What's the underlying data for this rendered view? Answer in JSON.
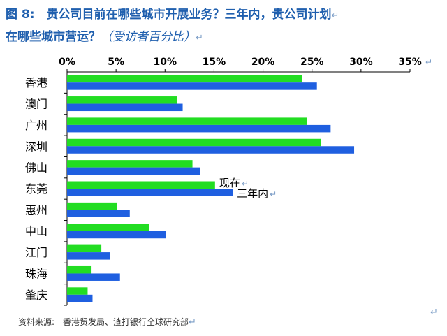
{
  "title": {
    "line1": "图 8:　贵公司目前在哪些城市开展业务？三年内，贵公司计划",
    "line2": "在哪些城市营运？",
    "line2_italic": "（受访者百分比）"
  },
  "return_mark": "↵",
  "source": "资料来源:　香港贸发局、渣打银行全球研究部",
  "colors": {
    "current": "#22dd22",
    "plan": "#1f5fe0",
    "title": "#1f5fae"
  },
  "chart_data": {
    "type": "bar",
    "orientation": "horizontal",
    "categories": [
      "香港",
      "澳门",
      "广州",
      "深圳",
      "佛山",
      "东莞",
      "惠州",
      "中山",
      "江门",
      "珠海",
      "肇庆"
    ],
    "series": [
      {
        "name": "现在",
        "values": [
          24.0,
          11.2,
          24.5,
          25.9,
          12.8,
          15.1,
          5.1,
          8.4,
          3.5,
          2.5,
          2.1
        ]
      },
      {
        "name": "三年内",
        "values": [
          25.5,
          11.8,
          26.9,
          29.3,
          13.6,
          16.9,
          6.4,
          10.1,
          4.4,
          5.4,
          2.6
        ]
      }
    ],
    "xlim": [
      0,
      35
    ],
    "x_ticks": [
      0,
      5,
      10,
      15,
      20,
      25,
      30,
      35
    ],
    "x_tick_labels": [
      "0%",
      "5%",
      "10%",
      "15%",
      "20%",
      "25%",
      "30%",
      "35%"
    ],
    "annotations": [
      {
        "text": "现在",
        "series": 0,
        "category": "东莞"
      },
      {
        "text": "三年内",
        "series": 1,
        "category": "东莞"
      }
    ],
    "axis_position": "top",
    "grid": false
  }
}
